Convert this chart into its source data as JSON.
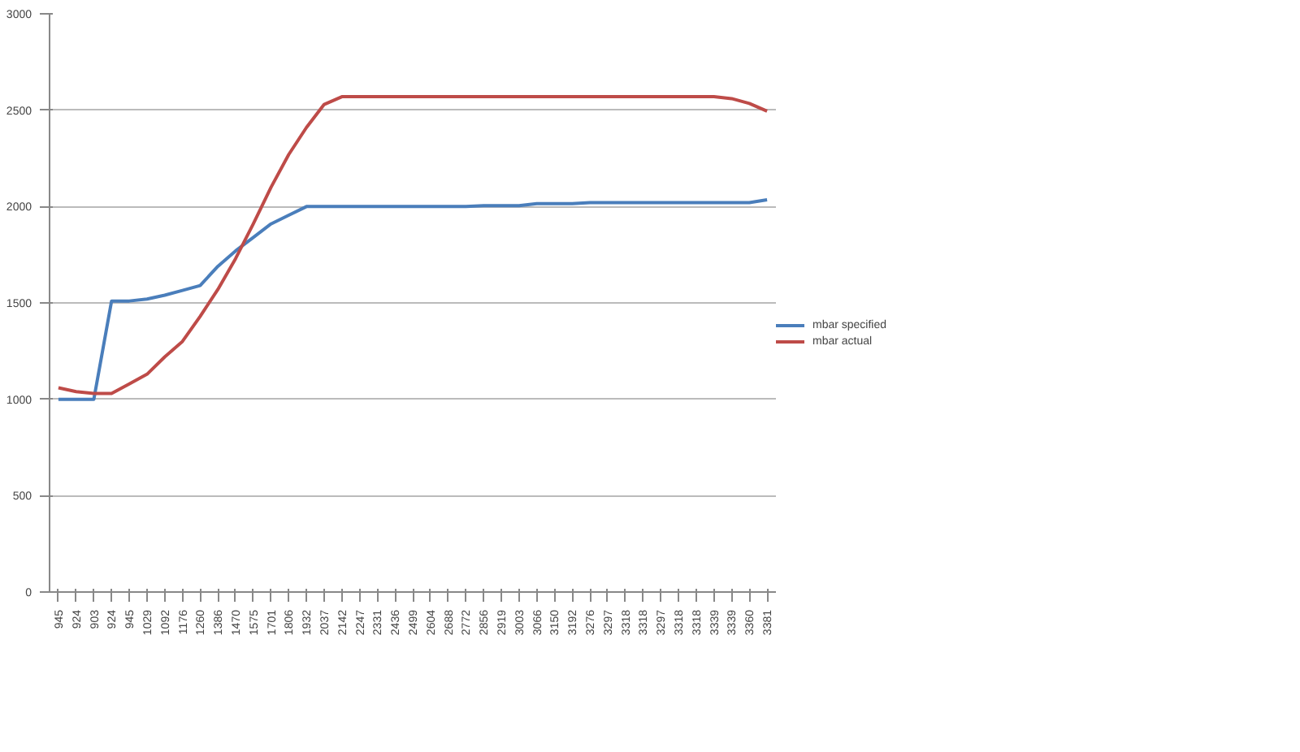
{
  "chart_data": {
    "type": "line",
    "categories": [
      "945",
      "924",
      "903",
      "924",
      "945",
      "1029",
      "1092",
      "1176",
      "1260",
      "1386",
      "1470",
      "1575",
      "1701",
      "1806",
      "1932",
      "2037",
      "2142",
      "2247",
      "2331",
      "2436",
      "2499",
      "2604",
      "2688",
      "2772",
      "2856",
      "2919",
      "3003",
      "3066",
      "3150",
      "3192",
      "3276",
      "3297",
      "3318",
      "3318",
      "3297",
      "3318",
      "3318",
      "3339",
      "3339",
      "3360",
      "3381"
    ],
    "series": [
      {
        "name": "mbar specified",
        "color": "#4a7ebb",
        "values": [
          1000,
          1000,
          1000,
          1510,
          1510,
          1520,
          1540,
          1565,
          1590,
          1690,
          1770,
          1840,
          1910,
          1955,
          2000,
          2000,
          2000,
          2000,
          2000,
          2000,
          2000,
          2000,
          2000,
          2000,
          2005,
          2005,
          2005,
          2015,
          2015,
          2015,
          2020,
          2020,
          2020,
          2020,
          2020,
          2020,
          2020,
          2020,
          2020,
          2020,
          2035
        ]
      },
      {
        "name": "mbar actual",
        "color": "#be4b48",
        "values": [
          1060,
          1040,
          1030,
          1030,
          1080,
          1130,
          1220,
          1300,
          1430,
          1570,
          1730,
          1910,
          2100,
          2270,
          2410,
          2530,
          2570,
          2570,
          2570,
          2570,
          2570,
          2570,
          2570,
          2570,
          2570,
          2570,
          2570,
          2570,
          2570,
          2570,
          2570,
          2570,
          2570,
          2570,
          2570,
          2570,
          2570,
          2570,
          2560,
          2535,
          2495
        ]
      }
    ],
    "ylim": [
      0,
      3000
    ],
    "yticks": [
      0,
      500,
      1000,
      1500,
      2000,
      2500,
      3000
    ],
    "grid": "y",
    "legend": "right",
    "marker": "none",
    "line_style": "solid"
  }
}
